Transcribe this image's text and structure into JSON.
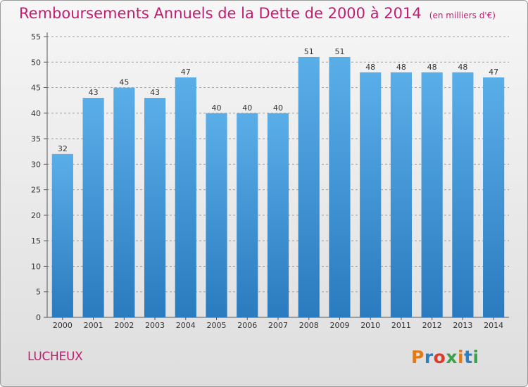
{
  "title": "Remboursements Annuels de la Dette de 2000 à 2014",
  "unit_note": "(en milliers d'€)",
  "town": "LUCHEUX",
  "logo": {
    "text": "Proxiti",
    "colors": [
      "#e07b1b",
      "#2b7fc1",
      "#e03a2b",
      "#3aa14a",
      "#e07b1b",
      "#2b7fc1",
      "#3aa14a"
    ]
  },
  "colors": {
    "bar_top": "#5aaee8",
    "bar_bottom": "#2a7bbf",
    "title": "#c21b70",
    "grid": "#a0a0a0"
  },
  "chart_data": {
    "type": "bar",
    "title": "Remboursements Annuels de la Dette de 2000 à 2014",
    "subtitle": "(en milliers d'€)",
    "xlabel": "",
    "ylabel": "",
    "categories": [
      "2000",
      "2001",
      "2002",
      "2003",
      "2004",
      "2005",
      "2006",
      "2007",
      "2008",
      "2009",
      "2010",
      "2011",
      "2012",
      "2013",
      "2014"
    ],
    "values": [
      32,
      43,
      45,
      43,
      47,
      40,
      40,
      40,
      51,
      51,
      48,
      48,
      48,
      48,
      47
    ],
    "ylim": [
      0,
      55
    ],
    "yticks": [
      0,
      5,
      10,
      15,
      20,
      25,
      30,
      35,
      40,
      45,
      50,
      55
    ],
    "grid": "horizontal dashed",
    "legend": "none"
  }
}
